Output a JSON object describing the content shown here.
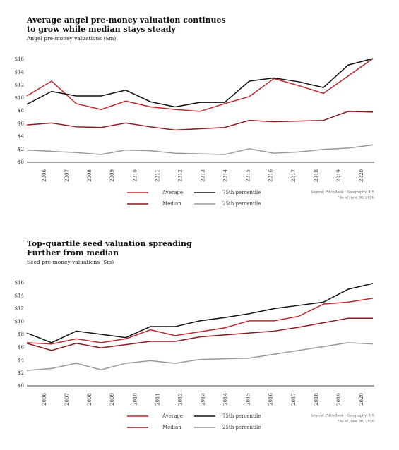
{
  "chart_data": [
    {
      "type": "line",
      "title": [
        "Average angel pre-money valuation continues",
        "to grow while median stays steady"
      ],
      "subtitle": "Angel pre-money valuations ($m)",
      "categories": [
        "2006",
        "2007",
        "2008",
        "2009",
        "2010",
        "2011",
        "2012",
        "2013",
        "2014",
        "2015",
        "2016",
        "2017",
        "2018",
        "2019",
        "2020"
      ],
      "series": [
        {
          "name": "Average",
          "color": "#c0282d",
          "values": [
            10.3,
            12.6,
            9.1,
            8.2,
            9.5,
            8.6,
            8.2,
            7.9,
            9.1,
            10.2,
            13.0,
            11.9,
            10.7,
            13.4,
            16.1
          ]
        },
        {
          "name": "Median",
          "color": "#8b1a1f",
          "values": [
            5.8,
            6.1,
            5.5,
            5.4,
            6.1,
            5.5,
            5.0,
            5.2,
            5.4,
            6.5,
            6.3,
            6.4,
            6.5,
            7.9,
            7.8
          ]
        },
        {
          "name": "75th percentile",
          "color": "#111111",
          "values": [
            9.0,
            11.0,
            10.3,
            10.3,
            11.2,
            9.4,
            8.6,
            9.3,
            9.3,
            12.6,
            13.1,
            12.5,
            11.6,
            15.1,
            16.1
          ]
        },
        {
          "name": "25th percentile",
          "color": "#999999",
          "values": [
            1.9,
            1.7,
            1.5,
            1.2,
            1.9,
            1.8,
            1.4,
            1.3,
            1.2,
            2.1,
            1.4,
            1.6,
            2.0,
            2.2,
            2.7
          ]
        }
      ],
      "ylim": [
        0,
        16
      ],
      "yticks": [
        {
          "value": 0,
          "label": "$0"
        },
        {
          "value": 2,
          "label": "$2"
        },
        {
          "value": 4,
          "label": "$4"
        },
        {
          "value": 6,
          "label": "$6"
        },
        {
          "value": 8,
          "label": "$8"
        },
        {
          "value": 10,
          "label": "$10"
        },
        {
          "value": 12,
          "label": "$12"
        },
        {
          "value": 14,
          "label": "$14"
        },
        {
          "value": 16,
          "label": "$16"
        }
      ],
      "source": "Source: PitchBook | Geography: US",
      "note": "*As of June 30, 2020"
    },
    {
      "type": "line",
      "title": [
        "Top-quartile seed valuation spreading",
        "Further from median"
      ],
      "subtitle": "Seed pre-money valuations ($m)",
      "categories": [
        "2006",
        "2007",
        "2008",
        "2009",
        "2010",
        "2011",
        "2012",
        "2013",
        "2014",
        "2015",
        "2016",
        "2017",
        "2018",
        "2019",
        "2020"
      ],
      "series": [
        {
          "name": "Average",
          "color": "#c0282d",
          "values": [
            6.7,
            6.5,
            7.3,
            6.7,
            7.3,
            8.7,
            7.8,
            8.4,
            9.0,
            10.1,
            10.1,
            10.8,
            12.7,
            13.0,
            13.6
          ]
        },
        {
          "name": "Median",
          "color": "#8b1a1f",
          "values": [
            6.6,
            5.5,
            6.6,
            5.9,
            6.4,
            6.9,
            6.9,
            7.6,
            7.9,
            8.2,
            8.5,
            9.1,
            9.8,
            10.5,
            10.5
          ]
        },
        {
          "name": "75th percentile",
          "color": "#111111",
          "values": [
            8.2,
            6.7,
            8.5,
            8.0,
            7.5,
            9.2,
            9.2,
            10.1,
            10.6,
            11.2,
            12.0,
            12.5,
            13.0,
            15.0,
            15.9
          ]
        },
        {
          "name": "25th percentile",
          "color": "#999999",
          "values": [
            2.4,
            2.7,
            3.5,
            2.5,
            3.5,
            3.9,
            3.5,
            4.1,
            4.2,
            4.3,
            4.9,
            5.5,
            6.1,
            6.7,
            6.5
          ]
        }
      ],
      "ylim": [
        0,
        16
      ],
      "yticks": [
        {
          "value": 0,
          "label": "$0"
        },
        {
          "value": 2,
          "label": "$2"
        },
        {
          "value": 4,
          "label": "$4"
        },
        {
          "value": 6,
          "label": "$6"
        },
        {
          "value": 8,
          "label": "$8"
        },
        {
          "value": 10,
          "label": "$10"
        },
        {
          "value": 12,
          "label": "$12"
        },
        {
          "value": 14,
          "label": "$14"
        },
        {
          "value": 16,
          "label": "$16"
        }
      ],
      "source": "Source: PitchBook | Geography: US",
      "note": "*As of June 30, 2020"
    }
  ]
}
